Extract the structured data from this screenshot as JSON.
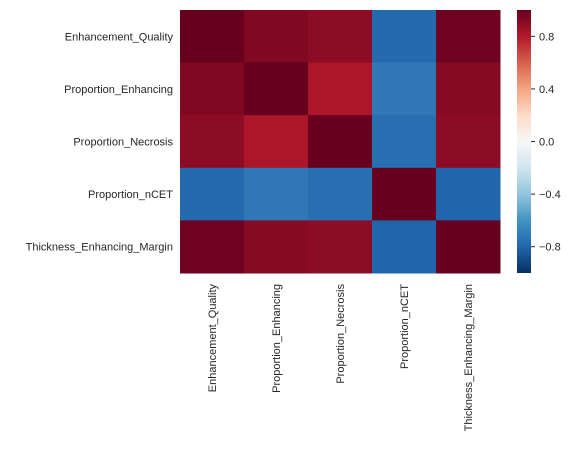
{
  "chart_data": {
    "type": "heatmap",
    "title": "",
    "xlabel": "",
    "ylabel": "",
    "rows": [
      "Enhancement_Quality",
      "Proportion_Enhancing",
      "Proportion_Necrosis",
      "Proportion_nCET",
      "Thickness_Enhancing_Margin"
    ],
    "columns": [
      "Enhancement_Quality",
      "Proportion_Enhancing",
      "Proportion_Necrosis",
      "Proportion_nCET",
      "Thickness_Enhancing_Margin"
    ],
    "values": [
      [
        1.0,
        0.93,
        0.9,
        -0.78,
        0.98
      ],
      [
        0.93,
        1.0,
        0.82,
        -0.72,
        0.92
      ],
      [
        0.9,
        0.82,
        1.0,
        -0.76,
        0.9
      ],
      [
        -0.78,
        -0.72,
        -0.76,
        1.0,
        -0.8
      ],
      [
        0.98,
        0.92,
        0.9,
        -0.8,
        1.0
      ]
    ],
    "colorbar": {
      "min": -1.0,
      "max": 1.0,
      "ticks": [
        0.8,
        0.4,
        0.0,
        -0.4,
        -0.8
      ],
      "tick_labels": [
        "0.8",
        "0.4",
        "0.0",
        "−0.4",
        "−0.8"
      ],
      "colormap": "RdBu_r"
    },
    "colors": {
      "low": "#053061",
      "mid": "#f7f7f7",
      "high": "#67001f"
    },
    "grid": false,
    "legend": "colorbar-right"
  }
}
